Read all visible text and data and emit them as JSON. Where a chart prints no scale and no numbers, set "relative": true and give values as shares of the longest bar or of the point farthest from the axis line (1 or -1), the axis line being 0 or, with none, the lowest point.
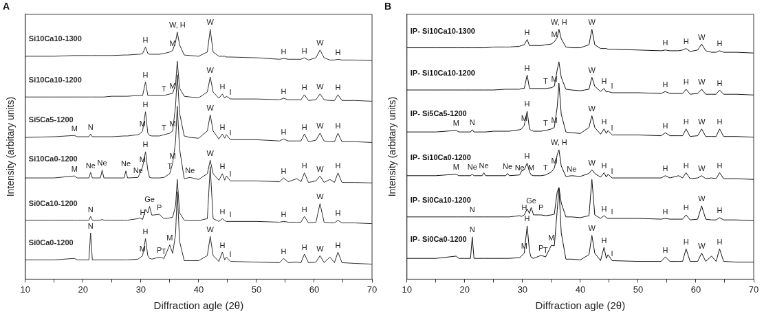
{
  "chart_data": [
    {
      "type": "line",
      "title": "A",
      "xlabel": "Diffraction agle (2θ)",
      "ylabel": "Intensity (arbitary units)",
      "relative": true,
      "marker": "none",
      "line_style": "solid",
      "xlim": [
        10,
        70
      ],
      "xticks": [
        10,
        {
          "value": 15,
          "label": null
        },
        20,
        {
          "value": 25,
          "label": null
        },
        30,
        {
          "value": 35,
          "label": null
        },
        40,
        {
          "value": 45,
          "label": null
        },
        50,
        {
          "value": 55,
          "label": null
        },
        60,
        {
          "value": 65,
          "label": null
        },
        70
      ],
      "x": [
        10,
        15,
        18.5,
        19,
        20,
        21.0,
        21.3,
        21.6,
        23.0,
        23.3,
        23.6,
        25,
        27.1,
        27.4,
        27.7,
        29.5,
        29.8,
        30.3,
        30.8,
        31.2,
        31.5,
        31.9,
        33.2,
        34,
        35.0,
        35.5,
        36.0,
        36.3,
        36.7,
        37.5,
        38.5,
        40,
        41.5,
        42.0,
        42.5,
        43.5,
        44.1,
        44.5,
        44.8,
        45.5,
        50,
        54.0,
        54.7,
        55.5,
        57.0,
        57.7,
        58.3,
        59.0,
        60.3,
        61.0,
        61.7,
        62.7,
        63.5,
        64.1,
        64.8,
        67,
        70
      ],
      "series": [
        {
          "name": "Si10Ca10-1300",
          "color": "#2b2b2b",
          "values": [
            0.892,
            0.892,
            0.895,
            0.895,
            0.895,
            0.895,
            0.895,
            0.895,
            0.895,
            0.895,
            0.895,
            0.895,
            0.897,
            0.897,
            0.897,
            0.9,
            0.9,
            0.903,
            0.929,
            0.903,
            0.9,
            0.9,
            0.9,
            0.903,
            0.909,
            0.915,
            0.949,
            0.989,
            0.937,
            0.897,
            0.895,
            0.892,
            0.909,
            1,
            0.909,
            0.892,
            0.892,
            0.892,
            0.889,
            0.889,
            0.886,
            0.88,
            0.883,
            0.88,
            0.88,
            0.88,
            0.886,
            0.877,
            0.886,
            0.917,
            0.886,
            0.877,
            0.877,
            0.88,
            0.877,
            0.877,
            0.875
          ]
        },
        {
          "name": "Si10Ca10-1200",
          "color": "#2b2b2b",
          "values": [
            0.729,
            0.729,
            0.729,
            0.729,
            0.729,
            0.729,
            0.729,
            0.729,
            0.729,
            0.729,
            0.729,
            0.732,
            0.732,
            0.732,
            0.732,
            0.735,
            0.735,
            0.735,
            0.789,
            0.735,
            0.735,
            0.735,
            0.735,
            0.735,
            0.741,
            0.744,
            0.778,
            0.872,
            0.764,
            0.732,
            0.729,
            0.726,
            0.749,
            0.809,
            0.749,
            0.724,
            0.741,
            0.724,
            0.732,
            0.721,
            0.721,
            0.718,
            0.724,
            0.718,
            0.718,
            0.718,
            0.738,
            0.715,
            0.718,
            0.741,
            0.718,
            0.715,
            0.715,
            0.738,
            0.715,
            0.715,
            0.712
          ]
        },
        {
          "name": "Si5Ca5-1200",
          "color": "#2b2b2b",
          "values": [
            0.567,
            0.57,
            0.575,
            0.57,
            0.57,
            0.57,
            0.581,
            0.57,
            0.57,
            0.57,
            0.57,
            0.57,
            0.573,
            0.573,
            0.573,
            0.578,
            0.581,
            0.593,
            0.67,
            0.584,
            0.575,
            0.573,
            0.573,
            0.578,
            0.584,
            0.593,
            0.692,
            0.818,
            0.664,
            0.573,
            0.567,
            0.564,
            0.593,
            0.658,
            0.593,
            0.561,
            0.581,
            0.564,
            0.578,
            0.558,
            0.558,
            0.553,
            0.561,
            0.553,
            0.553,
            0.553,
            0.581,
            0.55,
            0.556,
            0.584,
            0.553,
            0.55,
            0.55,
            0.584,
            0.55,
            0.55,
            0.547
          ]
        },
        {
          "name": "Si10Ca0-1200",
          "color": "#2b2b2b",
          "values": [
            0.405,
            0.405,
            0.413,
            0.405,
            0.405,
            0.405,
            0.427,
            0.405,
            0.405,
            0.436,
            0.405,
            0.405,
            0.405,
            0.433,
            0.405,
            0.407,
            0.422,
            0.45,
            0.51,
            0.436,
            0.407,
            0.405,
            0.405,
            0.407,
            0.422,
            0.464,
            0.55,
            0.692,
            0.521,
            0.402,
            0.407,
            0.399,
            0.422,
            0.476,
            0.422,
            0.396,
            0.422,
            0.396,
            0.413,
            0.393,
            0.393,
            0.39,
            0.405,
            0.39,
            0.402,
            0.39,
            0.425,
            0.387,
            0.393,
            0.413,
            0.387,
            0.399,
            0.387,
            0.425,
            0.387,
            0.387,
            0.385
          ]
        },
        {
          "name": "Si0Ca10-1200",
          "color": "#2b2b2b",
          "values": [
            0.236,
            0.236,
            0.236,
            0.236,
            0.236,
            0.236,
            0.251,
            0.236,
            0.236,
            0.239,
            0.236,
            0.236,
            0.236,
            0.236,
            0.236,
            0.242,
            0.245,
            0.239,
            0.279,
            0.265,
            0.291,
            0.256,
            0.259,
            0.242,
            0.245,
            0.248,
            0.293,
            0.399,
            0.265,
            0.236,
            0.234,
            0.234,
            0.242,
            0.45,
            0.242,
            0.231,
            0.242,
            0.234,
            0.231,
            0.231,
            0.231,
            0.228,
            0.231,
            0.228,
            0.228,
            0.228,
            0.251,
            0.225,
            0.228,
            0.302,
            0.228,
            0.225,
            0.225,
            0.236,
            0.225,
            0.225,
            0.222
          ]
        },
        {
          "name": "Si0Ca0-1200",
          "color": "#2b2b2b",
          "values": [
            0.077,
            0.077,
            0.083,
            0.077,
            0.077,
            0.077,
            0.185,
            0.077,
            0.077,
            0.077,
            0.077,
            0.077,
            0.077,
            0.077,
            0.077,
            0.08,
            0.085,
            0.094,
            0.162,
            0.094,
            0.083,
            0.08,
            0.088,
            0.083,
            0.137,
            0.103,
            0.179,
            0.35,
            0.151,
            0.074,
            0.074,
            0.074,
            0.094,
            0.171,
            0.094,
            0.071,
            0.108,
            0.077,
            0.088,
            0.071,
            0.068,
            0.066,
            0.083,
            0.066,
            0.068,
            0.066,
            0.1,
            0.066,
            0.068,
            0.094,
            0.066,
            0.088,
            0.066,
            0.108,
            0.066,
            0.063,
            0.06
          ]
        }
      ],
      "annotations": [
        {
          "text": "H",
          "x": 30.8,
          "y": 0.929
        },
        {
          "text": "M",
          "x": 35.5,
          "y": 0.915
        },
        {
          "text": "W, H",
          "x": 36.3,
          "y": 0.989
        },
        {
          "text": "W",
          "x": 42.0,
          "y": 1
        },
        {
          "text": "H",
          "x": 54.7,
          "y": 0.883
        },
        {
          "text": "H",
          "x": 58.3,
          "y": 0.886
        },
        {
          "text": "W",
          "x": 61.0,
          "y": 0.917
        },
        {
          "text": "H",
          "x": 64.1,
          "y": 0.88
        },
        {
          "text": "H",
          "x": 30.8,
          "y": 0.789
        },
        {
          "text": "T",
          "x": 34,
          "y": 0.735
        },
        {
          "text": "M",
          "x": 35.5,
          "y": 0.744
        },
        {
          "text": "W",
          "x": 42.0,
          "y": 0.809
        },
        {
          "text": "H",
          "x": 44.1,
          "y": 0.741
        },
        {
          "text": "I",
          "x": 45.5,
          "y": 0.721
        },
        {
          "text": "H",
          "x": 54.7,
          "y": 0.724
        },
        {
          "text": "H",
          "x": 58.3,
          "y": 0.738
        },
        {
          "text": "W",
          "x": 61.0,
          "y": 0.741
        },
        {
          "text": "H",
          "x": 64.1,
          "y": 0.738
        },
        {
          "text": "M",
          "x": 18.5,
          "y": 0.575
        },
        {
          "text": "N",
          "x": 21.3,
          "y": 0.581
        },
        {
          "text": "M",
          "x": 30.3,
          "y": 0.593
        },
        {
          "text": "H",
          "x": 30.8,
          "y": 0.67
        },
        {
          "text": "T",
          "x": 34,
          "y": 0.578
        },
        {
          "text": "M",
          "x": 35.5,
          "y": 0.593
        },
        {
          "text": "W",
          "x": 42.0,
          "y": 0.658
        },
        {
          "text": "H",
          "x": 44.1,
          "y": 0.581
        },
        {
          "text": "I",
          "x": 45.5,
          "y": 0.558
        },
        {
          "text": "H",
          "x": 54.7,
          "y": 0.561
        },
        {
          "text": "H",
          "x": 58.3,
          "y": 0.581
        },
        {
          "text": "W",
          "x": 61.0,
          "y": 0.584
        },
        {
          "text": "H",
          "x": 64.1,
          "y": 0.584
        },
        {
          "text": "M",
          "x": 18.5,
          "y": 0.413
        },
        {
          "text": "Ne",
          "x": 21.3,
          "y": 0.427
        },
        {
          "text": "Ne",
          "x": 23.3,
          "y": 0.436
        },
        {
          "text": "Ne",
          "x": 27.4,
          "y": 0.433
        },
        {
          "text": "Ne",
          "x": 29.5,
          "y": 0.407
        },
        {
          "text": "M",
          "x": 30.3,
          "y": 0.45
        },
        {
          "text": "H",
          "x": 30.8,
          "y": 0.51
        },
        {
          "text": "T",
          "x": 35.0,
          "y": 0.422
        },
        {
          "text": "M",
          "x": 35.5,
          "y": 0.464
        },
        {
          "text": "Ne",
          "x": 38.5,
          "y": 0.407
        },
        {
          "text": "W",
          "x": 42.0,
          "y": 0.476
        },
        {
          "text": "H",
          "x": 44.1,
          "y": 0.422
        },
        {
          "text": "I",
          "x": 45.5,
          "y": 0.393
        },
        {
          "text": "H",
          "x": 54.7,
          "y": 0.405
        },
        {
          "text": "H",
          "x": 58.3,
          "y": 0.425
        },
        {
          "text": "W",
          "x": 61.0,
          "y": 0.413
        },
        {
          "text": "H",
          "x": 64.1,
          "y": 0.425
        },
        {
          "text": "N",
          "x": 21.3,
          "y": 0.251
        },
        {
          "text": "H",
          "x": 30.3,
          "y": 0.239
        },
        {
          "text": "Ge",
          "x": 31.5,
          "y": 0.291
        },
        {
          "text": "P",
          "x": 33.2,
          "y": 0.259
        },
        {
          "text": "H",
          "x": 44.1,
          "y": 0.242
        },
        {
          "text": "I",
          "x": 45.5,
          "y": 0.231
        },
        {
          "text": "H",
          "x": 54.7,
          "y": 0.231
        },
        {
          "text": "H",
          "x": 58.3,
          "y": 0.251
        },
        {
          "text": "W",
          "x": 61.0,
          "y": 0.302
        },
        {
          "text": "H",
          "x": 64.1,
          "y": 0.236
        },
        {
          "text": "N",
          "x": 21.3,
          "y": 0.185
        },
        {
          "text": "M",
          "x": 30.3,
          "y": 0.094
        },
        {
          "text": "H",
          "x": 30.8,
          "y": 0.162
        },
        {
          "text": "P",
          "x": 33.2,
          "y": 0.088
        },
        {
          "text": "T",
          "x": 34,
          "y": 0.083
        },
        {
          "text": "M",
          "x": 35.0,
          "y": 0.137
        },
        {
          "text": "W",
          "x": 42.0,
          "y": 0.171
        },
        {
          "text": "H",
          "x": 44.1,
          "y": 0.108
        },
        {
          "text": "I",
          "x": 45.5,
          "y": 0.071
        },
        {
          "text": "H",
          "x": 54.7,
          "y": 0.083
        },
        {
          "text": "H",
          "x": 58.3,
          "y": 0.1
        },
        {
          "text": "W",
          "x": 61.0,
          "y": 0.094
        },
        {
          "text": "H",
          "x": 64.1,
          "y": 0.108
        }
      ]
    },
    {
      "type": "line",
      "title": "B",
      "xlabel": "Diffraction agle (2θ)",
      "ylabel": "Intensity (arbitary units)",
      "relative": true,
      "marker": "none",
      "line_style": "solid",
      "xlim": [
        10,
        70
      ],
      "xticks": [
        10,
        {
          "value": 15,
          "label": null
        },
        20,
        {
          "value": 25,
          "label": null
        },
        30,
        {
          "value": 35,
          "label": null
        },
        40,
        {
          "value": 45,
          "label": null
        },
        50,
        {
          "value": 55,
          "label": null
        },
        60,
        {
          "value": 65,
          "label": null
        },
        70
      ],
      "x": [
        10,
        15,
        18.5,
        19,
        20,
        21.0,
        21.3,
        21.6,
        23.0,
        23.3,
        23.6,
        25,
        27.1,
        27.4,
        27.7,
        29.5,
        29.8,
        30.3,
        30.8,
        31.2,
        31.5,
        31.9,
        33.2,
        34,
        35.0,
        35.5,
        36.0,
        36.3,
        36.7,
        37.5,
        38.5,
        40,
        41.5,
        42.0,
        42.5,
        43.5,
        44.1,
        44.5,
        44.8,
        45.5,
        50,
        54.0,
        54.7,
        55.5,
        57.0,
        57.7,
        58.3,
        59.0,
        60.3,
        61.0,
        61.7,
        62.7,
        63.5,
        64.1,
        64.8,
        67,
        70
      ],
      "series": [
        {
          "name": "IP- Si10Ca10-1300",
          "color": "#111111",
          "values": [
            0.926,
            0.926,
            0.926,
            0.926,
            0.926,
            0.926,
            0.926,
            0.926,
            0.926,
            0.926,
            0.926,
            0.929,
            0.929,
            0.929,
            0.929,
            0.932,
            0.935,
            0.938,
            0.959,
            0.935,
            0.935,
            0.935,
            0.935,
            0.938,
            0.941,
            0.95,
            0.967,
            1,
            0.962,
            0.929,
            0.926,
            0.926,
            0.938,
            1,
            0.938,
            0.923,
            0.923,
            0.923,
            0.92,
            0.92,
            0.917,
            0.914,
            0.917,
            0.914,
            0.914,
            0.917,
            0.923,
            0.911,
            0.917,
            0.941,
            0.914,
            0.908,
            0.908,
            0.914,
            0.908,
            0.908,
            0.905
          ]
        },
        {
          "name": "IP- Si10Ca10-1200",
          "color": "#111111",
          "values": [
            0.757,
            0.757,
            0.757,
            0.757,
            0.757,
            0.757,
            0.757,
            0.757,
            0.757,
            0.757,
            0.757,
            0.757,
            0.76,
            0.76,
            0.76,
            0.76,
            0.763,
            0.763,
            0.817,
            0.763,
            0.763,
            0.763,
            0.763,
            0.763,
            0.766,
            0.772,
            0.837,
            0.87,
            0.808,
            0.76,
            0.757,
            0.754,
            0.76,
            0.808,
            0.772,
            0.751,
            0.763,
            0.749,
            0.751,
            0.746,
            0.746,
            0.743,
            0.751,
            0.743,
            0.743,
            0.743,
            0.76,
            0.74,
            0.743,
            0.76,
            0.74,
            0.74,
            0.74,
            0.757,
            0.74,
            0.74,
            0.737
          ]
        },
        {
          "name": "IP- Si5Ca5-1200",
          "color": "#111111",
          "values": [
            0.589,
            0.589,
            0.595,
            0.589,
            0.589,
            0.589,
            0.598,
            0.589,
            0.589,
            0.589,
            0.589,
            0.592,
            0.592,
            0.592,
            0.592,
            0.598,
            0.601,
            0.615,
            0.672,
            0.601,
            0.595,
            0.592,
            0.592,
            0.595,
            0.601,
            0.607,
            0.689,
            0.784,
            0.66,
            0.589,
            0.586,
            0.583,
            0.607,
            0.654,
            0.607,
            0.58,
            0.601,
            0.583,
            0.595,
            0.577,
            0.577,
            0.574,
            0.586,
            0.574,
            0.574,
            0.574,
            0.601,
            0.571,
            0.574,
            0.601,
            0.571,
            0.571,
            0.571,
            0.601,
            0.571,
            0.571,
            0.568
          ]
        },
        {
          "name": "IP- Si10Ca0-1200",
          "color": "#111111",
          "values": [
            0.414,
            0.414,
            0.42,
            0.414,
            0.414,
            0.414,
            0.42,
            0.414,
            0.414,
            0.426,
            0.414,
            0.414,
            0.414,
            0.423,
            0.414,
            0.417,
            0.432,
            0.438,
            0.464,
            0.429,
            0.417,
            0.414,
            0.414,
            0.417,
            0.429,
            0.444,
            0.497,
            0.518,
            0.453,
            0.411,
            0.414,
            0.411,
            0.423,
            0.438,
            0.423,
            0.408,
            0.426,
            0.408,
            0.42,
            0.405,
            0.405,
            0.405,
            0.414,
            0.405,
            0.414,
            0.405,
            0.426,
            0.402,
            0.405,
            0.414,
            0.402,
            0.405,
            0.402,
            0.426,
            0.402,
            0.402,
            0.399
          ]
        },
        {
          "name": "IP- Si0Ca10-1200",
          "color": "#111111",
          "values": [
            0.249,
            0.249,
            0.249,
            0.249,
            0.249,
            0.249,
            0.249,
            0.249,
            0.249,
            0.249,
            0.249,
            0.249,
            0.249,
            0.249,
            0.249,
            0.254,
            0.251,
            0.257,
            0.281,
            0.263,
            0.287,
            0.257,
            0.257,
            0.254,
            0.257,
            0.26,
            0.349,
            0.367,
            0.305,
            0.249,
            0.249,
            0.246,
            0.254,
            0.399,
            0.257,
            0.243,
            0.254,
            0.246,
            0.243,
            0.243,
            0.243,
            0.24,
            0.243,
            0.24,
            0.24,
            0.24,
            0.257,
            0.237,
            0.24,
            0.293,
            0.24,
            0.237,
            0.237,
            0.246,
            0.237,
            0.237,
            0.234
          ]
        },
        {
          "name": "IP- Si0Ca0-1200",
          "color": "#111111",
          "values": [
            0.083,
            0.083,
            0.092,
            0.083,
            0.083,
            0.083,
            0.169,
            0.083,
            0.083,
            0.083,
            0.083,
            0.083,
            0.083,
            0.083,
            0.083,
            0.086,
            0.092,
            0.104,
            0.213,
            0.112,
            0.086,
            0.083,
            0.095,
            0.089,
            0.136,
            0.133,
            0.275,
            0.364,
            0.186,
            0.08,
            0.08,
            0.077,
            0.098,
            0.175,
            0.104,
            0.074,
            0.127,
            0.083,
            0.098,
            0.074,
            0.071,
            0.071,
            0.089,
            0.071,
            0.071,
            0.071,
            0.121,
            0.071,
            0.071,
            0.104,
            0.071,
            0.092,
            0.071,
            0.121,
            0.071,
            0.068,
            0.068
          ]
        }
      ],
      "annotations": [
        {
          "text": "H",
          "x": 30.8,
          "y": 0.959
        },
        {
          "text": "M",
          "x": 35.5,
          "y": 0.95
        },
        {
          "text": "W, H",
          "x": 36.3,
          "y": 1
        },
        {
          "text": "W",
          "x": 42.0,
          "y": 1
        },
        {
          "text": "H",
          "x": 54.7,
          "y": 0.917
        },
        {
          "text": "H",
          "x": 58.3,
          "y": 0.923
        },
        {
          "text": "W",
          "x": 61.0,
          "y": 0.941
        },
        {
          "text": "H",
          "x": 64.1,
          "y": 0.914
        },
        {
          "text": "H",
          "x": 30.8,
          "y": 0.817
        },
        {
          "text": "T",
          "x": 34,
          "y": 0.763
        },
        {
          "text": "M",
          "x": 35.5,
          "y": 0.772
        },
        {
          "text": "W",
          "x": 42.0,
          "y": 0.808
        },
        {
          "text": "H",
          "x": 44.1,
          "y": 0.763
        },
        {
          "text": "I",
          "x": 45.5,
          "y": 0.746
        },
        {
          "text": "H",
          "x": 54.7,
          "y": 0.751
        },
        {
          "text": "H",
          "x": 58.3,
          "y": 0.76
        },
        {
          "text": "W",
          "x": 61.0,
          "y": 0.76
        },
        {
          "text": "H",
          "x": 64.1,
          "y": 0.757
        },
        {
          "text": "M",
          "x": 18.5,
          "y": 0.595
        },
        {
          "text": "N",
          "x": 21.3,
          "y": 0.598
        },
        {
          "text": "M",
          "x": 30.3,
          "y": 0.615
        },
        {
          "text": "H",
          "x": 30.8,
          "y": 0.672
        },
        {
          "text": "T",
          "x": 34,
          "y": 0.595
        },
        {
          "text": "M",
          "x": 35.5,
          "y": 0.607
        },
        {
          "text": "W",
          "x": 42.0,
          "y": 0.654
        },
        {
          "text": "H",
          "x": 44.1,
          "y": 0.601
        },
        {
          "text": "I",
          "x": 45.5,
          "y": 0.577
        },
        {
          "text": "H",
          "x": 54.7,
          "y": 0.586
        },
        {
          "text": "H",
          "x": 58.3,
          "y": 0.601
        },
        {
          "text": "W",
          "x": 61.0,
          "y": 0.601
        },
        {
          "text": "H",
          "x": 64.1,
          "y": 0.601
        },
        {
          "text": "M",
          "x": 18.5,
          "y": 0.42
        },
        {
          "text": "Ne",
          "x": 21.3,
          "y": 0.42
        },
        {
          "text": "Ne",
          "x": 23.3,
          "y": 0.426
        },
        {
          "text": "Ne",
          "x": 27.4,
          "y": 0.423
        },
        {
          "text": "Ne",
          "x": 29.5,
          "y": 0.417
        },
        {
          "text": "H",
          "x": 30.8,
          "y": 0.464
        },
        {
          "text": "M",
          "x": 31.5,
          "y": 0.417
        },
        {
          "text": "T",
          "x": 34,
          "y": 0.417
        },
        {
          "text": "M",
          "x": 35.5,
          "y": 0.444
        },
        {
          "text": "W, H",
          "x": 36.3,
          "y": 0.518
        },
        {
          "text": "Ne",
          "x": 38.5,
          "y": 0.411
        },
        {
          "text": "W",
          "x": 42.0,
          "y": 0.438
        },
        {
          "text": "H",
          "x": 44.1,
          "y": 0.426
        },
        {
          "text": "I",
          "x": 45.5,
          "y": 0.405
        },
        {
          "text": "H",
          "x": 54.7,
          "y": 0.414
        },
        {
          "text": "H",
          "x": 58.3,
          "y": 0.426
        },
        {
          "text": "W",
          "x": 61.0,
          "y": 0.414
        },
        {
          "text": "H",
          "x": 64.1,
          "y": 0.426
        },
        {
          "text": "N",
          "x": 21.3,
          "y": 0.249
        },
        {
          "text": "H",
          "x": 30.3,
          "y": 0.257
        },
        {
          "text": "Ge",
          "x": 31.5,
          "y": 0.287
        },
        {
          "text": "P",
          "x": 33.2,
          "y": 0.257
        },
        {
          "text": "H",
          "x": 44.1,
          "y": 0.254
        },
        {
          "text": "I",
          "x": 45.5,
          "y": 0.243
        },
        {
          "text": "H",
          "x": 54.7,
          "y": 0.243
        },
        {
          "text": "H",
          "x": 58.3,
          "y": 0.257
        },
        {
          "text": "W",
          "x": 61.0,
          "y": 0.293
        },
        {
          "text": "H",
          "x": 64.1,
          "y": 0.246
        },
        {
          "text": "N",
          "x": 21.3,
          "y": 0.169
        },
        {
          "text": "M",
          "x": 30.3,
          "y": 0.104
        },
        {
          "text": "H",
          "x": 30.8,
          "y": 0.213
        },
        {
          "text": "P",
          "x": 33.2,
          "y": 0.095
        },
        {
          "text": "T",
          "x": 34,
          "y": 0.089
        },
        {
          "text": "M",
          "x": 35.0,
          "y": 0.136
        },
        {
          "text": "W",
          "x": 42.0,
          "y": 0.175
        },
        {
          "text": "H",
          "x": 44.1,
          "y": 0.127
        },
        {
          "text": "I",
          "x": 45.5,
          "y": 0.074
        },
        {
          "text": "H",
          "x": 54.7,
          "y": 0.089
        },
        {
          "text": "H",
          "x": 58.3,
          "y": 0.121
        },
        {
          "text": "W",
          "x": 61.0,
          "y": 0.104
        },
        {
          "text": "H",
          "x": 64.1,
          "y": 0.121
        }
      ]
    }
  ]
}
